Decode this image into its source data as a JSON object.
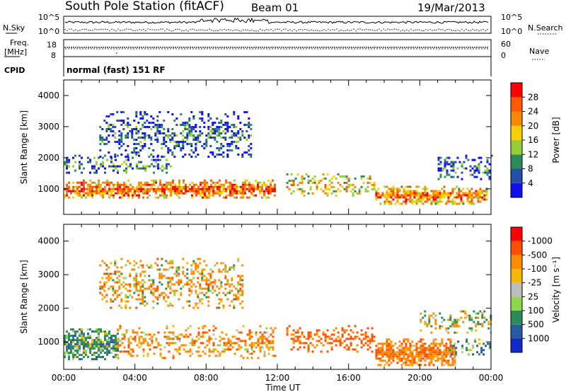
{
  "header": {
    "station": "South Pole Station (fitACF)",
    "beam": "Beam 01",
    "date": "19/Mar/2013"
  },
  "top_panels": {
    "nsky_label": "N.Sky",
    "nsky_ticks": [
      "10^5",
      "10^0"
    ],
    "nsearch_label": "N.Search",
    "nsearch_ticks": [
      "10^5",
      "10^0"
    ],
    "freq_label": "Freq.",
    "freq_unit": "[MHz]",
    "freq_ticks": [
      "18",
      "8"
    ],
    "nave_label": "Nave",
    "nave_ticks": [
      "60",
      "0"
    ],
    "cpid_label": "CPID",
    "cpid_text": "normal (fast) 151 RF"
  },
  "chart_data": [
    {
      "type": "heatmap",
      "panel": "power",
      "ylabel": "Slant Range [km]",
      "xlabel": "",
      "xticks": [
        "00:00",
        "04:00",
        "08:00",
        "12:00",
        "16:00",
        "20:00",
        "00:00"
      ],
      "xlim": [
        0,
        24
      ],
      "ylim": [
        180,
        4500
      ],
      "yticks": [
        1000,
        2000,
        3000,
        4000
      ],
      "colorbar": {
        "label": "Power [dB]",
        "levels": [
          4,
          8,
          12,
          16,
          20,
          24,
          28
        ],
        "colors": [
          "#1010f0",
          "#244ea8",
          "#2f8a5a",
          "#98cc3a",
          "#f4d000",
          "#f58a00",
          "#ff5a00",
          "#ff0000"
        ]
      },
      "echo_bands": [
        {
          "t0": 0.0,
          "t1": 11.9,
          "r0": 700,
          "r1": 1300,
          "level": 26
        },
        {
          "t0": 0.0,
          "t1": 6.0,
          "r0": 1500,
          "r1": 2100,
          "level": 10
        },
        {
          "t0": 2.0,
          "t1": 10.5,
          "r0": 2000,
          "r1": 3500,
          "level": 8
        },
        {
          "t0": 12.5,
          "t1": 17.5,
          "r0": 800,
          "r1": 1500,
          "level": 20
        },
        {
          "t0": 17.5,
          "t1": 23.7,
          "r0": 500,
          "r1": 1100,
          "level": 24
        },
        {
          "t0": 21.0,
          "t1": 24.0,
          "r0": 1300,
          "r1": 2100,
          "level": 8
        }
      ]
    },
    {
      "type": "heatmap",
      "panel": "velocity",
      "ylabel": "Slant Range [km]",
      "xlabel": "Time UT",
      "xticks": [
        "00:00",
        "04:00",
        "08:00",
        "12:00",
        "16:00",
        "20:00",
        "00:00"
      ],
      "xlim": [
        0,
        24
      ],
      "ylim": [
        180,
        4500
      ],
      "yticks": [
        1000,
        2000,
        3000,
        4000
      ],
      "colorbar": {
        "label": "Velocity [m s⁻¹]",
        "levels": [
          1000,
          500,
          100,
          25,
          -25,
          -100,
          -500,
          -1000
        ],
        "colors": [
          "#1428c8",
          "#2a5aa0",
          "#2f8a5a",
          "#8ed850",
          "#bdbdbd",
          "#f4b800",
          "#ff8c00",
          "#ff5000",
          "#ff0000"
        ]
      },
      "echo_bands": [
        {
          "t0": 0.0,
          "t1": 3.0,
          "r0": 500,
          "r1": 1400,
          "level": 300
        },
        {
          "t0": 3.0,
          "t1": 11.9,
          "r0": 500,
          "r1": 1500,
          "level": -300
        },
        {
          "t0": 2.0,
          "t1": 10.0,
          "r0": 2000,
          "r1": 3500,
          "level": -200
        },
        {
          "t0": 12.5,
          "t1": 17.5,
          "r0": 700,
          "r1": 1500,
          "level": -600
        },
        {
          "t0": 17.5,
          "t1": 22.0,
          "r0": 300,
          "r1": 1100,
          "level": -400
        },
        {
          "t0": 20.0,
          "t1": 24.0,
          "r0": 1300,
          "r1": 2000,
          "level": 0
        },
        {
          "t0": 21.5,
          "t1": 24.0,
          "r0": 600,
          "r1": 1100,
          "level": 300
        }
      ]
    }
  ]
}
